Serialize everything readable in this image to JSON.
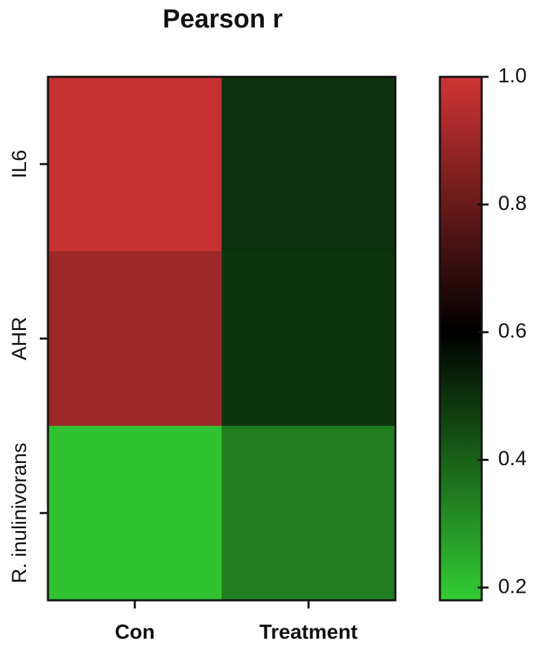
{
  "chart_data": {
    "type": "heatmap",
    "title": "Pearson r",
    "x_categories": [
      "Con",
      "Treatment"
    ],
    "y_categories": [
      "IL6",
      "AHR",
      "R. inulinivorans"
    ],
    "values": [
      [
        0.98,
        0.5
      ],
      [
        0.9,
        0.49
      ],
      [
        0.2,
        0.34
      ]
    ],
    "colorbar": {
      "lim": [
        0.18,
        1.0
      ],
      "ticks": [
        0.2,
        0.4,
        0.6,
        0.8,
        {
          "value": 1,
          "label": "1.0"
        }
      ]
    },
    "cmap": {
      "low": "#33cc33",
      "mid": "#000000",
      "high": "#d03434",
      "center": 0.6
    }
  }
}
